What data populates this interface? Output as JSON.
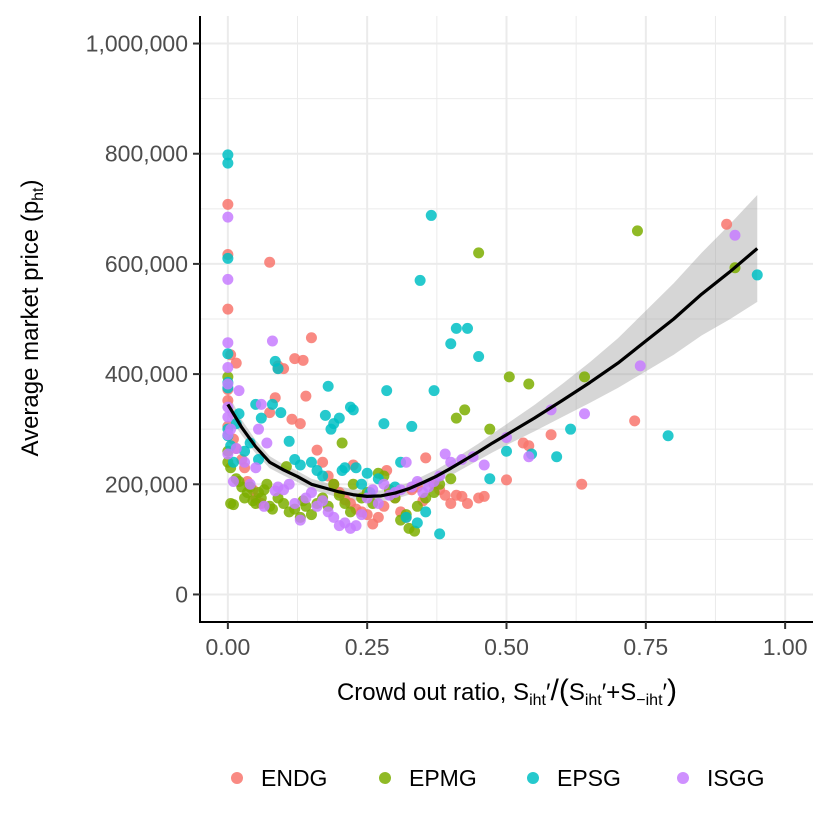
{
  "chart_data": {
    "type": "scatter",
    "title": "",
    "xlabel": "Crowd out ratio, S",
    "ylabel": "Average market price (p",
    "xlabel_math": {
      "prefix": "Crowd out ratio, ",
      "s1": "S",
      "sub1": "iht",
      "prime1": "′",
      "slash": "/",
      "open": "(",
      "s2": "S",
      "sub2": "iht",
      "prime2": "′",
      "plus": "+",
      "s3": "S",
      "sub3": "−iht",
      "prime3": "′",
      "close": ")"
    },
    "ylabel_math": {
      "main": "Average market price (p",
      "sub": "ht",
      "close": ")"
    },
    "xlim": [
      -0.05,
      1.05
    ],
    "ylim": [
      -50000,
      1050000
    ],
    "x_ticks": [
      0,
      0.25,
      0.5,
      0.75,
      1.0
    ],
    "x_tick_labels": [
      "0.00",
      "0.25",
      "0.50",
      "0.75",
      "1.00"
    ],
    "y_ticks": [
      0,
      200000,
      400000,
      600000,
      800000,
      1000000
    ],
    "y_tick_labels": [
      "0",
      "200,000",
      "400,000",
      "600,000",
      "800,000",
      "1,000,000"
    ],
    "grid": true,
    "legend_position": "bottom",
    "legend": [
      "ENDG",
      "EPMG",
      "EPSG",
      "ISGG"
    ],
    "colors": {
      "ENDG": "#F8766D",
      "EPMG": "#7CAE00",
      "EPSG": "#00BFC4",
      "ISGG": "#C77CFF"
    },
    "series": [
      {
        "name": "ENDG",
        "points": [
          [
            0.0,
            708000
          ],
          [
            0.0,
            617000
          ],
          [
            0.0,
            518000
          ],
          [
            0.005,
            435000
          ],
          [
            0.015,
            420000
          ],
          [
            0.0,
            372000
          ],
          [
            0.0,
            352000
          ],
          [
            0.0,
            305000
          ],
          [
            0.01,
            282000
          ],
          [
            0.015,
            265000
          ],
          [
            0.025,
            245000
          ],
          [
            0.03,
            230000
          ],
          [
            0.035,
            205000
          ],
          [
            0.045,
            190000
          ],
          [
            0.05,
            175000
          ],
          [
            0.06,
            165000
          ],
          [
            0.075,
            603000
          ],
          [
            0.075,
            330000
          ],
          [
            0.085,
            357000
          ],
          [
            0.09,
            410000
          ],
          [
            0.1,
            410000
          ],
          [
            0.12,
            428000
          ],
          [
            0.115,
            318000
          ],
          [
            0.13,
            310000
          ],
          [
            0.135,
            425000
          ],
          [
            0.14,
            360000
          ],
          [
            0.15,
            466000
          ],
          [
            0.16,
            262000
          ],
          [
            0.17,
            240000
          ],
          [
            0.18,
            215000
          ],
          [
            0.19,
            200000
          ],
          [
            0.2,
            185000
          ],
          [
            0.21,
            172000
          ],
          [
            0.22,
            165000
          ],
          [
            0.225,
            235000
          ],
          [
            0.23,
            155000
          ],
          [
            0.24,
            150000
          ],
          [
            0.25,
            145000
          ],
          [
            0.26,
            128000
          ],
          [
            0.27,
            140000
          ],
          [
            0.28,
            160000
          ],
          [
            0.285,
            225000
          ],
          [
            0.3,
            175000
          ],
          [
            0.31,
            150000
          ],
          [
            0.32,
            140000
          ],
          [
            0.33,
            190000
          ],
          [
            0.34,
            195000
          ],
          [
            0.35,
            170000
          ],
          [
            0.355,
            248000
          ],
          [
            0.37,
            200000
          ],
          [
            0.38,
            190000
          ],
          [
            0.39,
            180000
          ],
          [
            0.4,
            165000
          ],
          [
            0.41,
            180000
          ],
          [
            0.42,
            178000
          ],
          [
            0.43,
            165000
          ],
          [
            0.45,
            175000
          ],
          [
            0.46,
            178000
          ],
          [
            0.5,
            208000
          ],
          [
            0.53,
            275000
          ],
          [
            0.54,
            270000
          ],
          [
            0.58,
            290000
          ],
          [
            0.635,
            200000
          ],
          [
            0.73,
            315000
          ],
          [
            0.895,
            672000
          ],
          [
            0.09,
            415000
          ]
        ]
      },
      {
        "name": "EPMG",
        "points": [
          [
            0.0,
            395000
          ],
          [
            0.0,
            260000
          ],
          [
            0.0,
            240000
          ],
          [
            0.005,
            230000
          ],
          [
            0.005,
            165000
          ],
          [
            0.01,
            163000
          ],
          [
            0.015,
            210000
          ],
          [
            0.02,
            205000
          ],
          [
            0.025,
            195000
          ],
          [
            0.03,
            175000
          ],
          [
            0.035,
            185000
          ],
          [
            0.04,
            195000
          ],
          [
            0.045,
            170000
          ],
          [
            0.05,
            165000
          ],
          [
            0.055,
            185000
          ],
          [
            0.06,
            175000
          ],
          [
            0.065,
            190000
          ],
          [
            0.07,
            200000
          ],
          [
            0.075,
            160000
          ],
          [
            0.08,
            155000
          ],
          [
            0.09,
            175000
          ],
          [
            0.1,
            165000
          ],
          [
            0.105,
            232000
          ],
          [
            0.11,
            150000
          ],
          [
            0.12,
            155000
          ],
          [
            0.13,
            140000
          ],
          [
            0.135,
            170000
          ],
          [
            0.14,
            160000
          ],
          [
            0.15,
            145000
          ],
          [
            0.16,
            165000
          ],
          [
            0.17,
            175000
          ],
          [
            0.18,
            160000
          ],
          [
            0.19,
            200000
          ],
          [
            0.2,
            180000
          ],
          [
            0.205,
            275000
          ],
          [
            0.21,
            165000
          ],
          [
            0.22,
            150000
          ],
          [
            0.225,
            200000
          ],
          [
            0.24,
            175000
          ],
          [
            0.25,
            185000
          ],
          [
            0.26,
            165000
          ],
          [
            0.27,
            220000
          ],
          [
            0.28,
            215000
          ],
          [
            0.29,
            190000
          ],
          [
            0.3,
            175000
          ],
          [
            0.31,
            135000
          ],
          [
            0.32,
            145000
          ],
          [
            0.325,
            120000
          ],
          [
            0.335,
            115000
          ],
          [
            0.34,
            160000
          ],
          [
            0.355,
            175000
          ],
          [
            0.37,
            185000
          ],
          [
            0.38,
            200000
          ],
          [
            0.4,
            210000
          ],
          [
            0.41,
            320000
          ],
          [
            0.425,
            335000
          ],
          [
            0.45,
            620000
          ],
          [
            0.47,
            300000
          ],
          [
            0.505,
            395000
          ],
          [
            0.54,
            382000
          ],
          [
            0.64,
            395000
          ],
          [
            0.735,
            660000
          ],
          [
            0.91,
            593000
          ]
        ]
      },
      {
        "name": "EPSG",
        "points": [
          [
            0.0,
            798000
          ],
          [
            0.0,
            783000
          ],
          [
            0.0,
            610000
          ],
          [
            0.0,
            437000
          ],
          [
            0.0,
            385000
          ],
          [
            0.0,
            375000
          ],
          [
            0.0,
            300000
          ],
          [
            0.0,
            288000
          ],
          [
            0.005,
            270000
          ],
          [
            0.01,
            240000
          ],
          [
            0.015,
            310000
          ],
          [
            0.02,
            328000
          ],
          [
            0.03,
            260000
          ],
          [
            0.04,
            275000
          ],
          [
            0.05,
            345000
          ],
          [
            0.055,
            245000
          ],
          [
            0.06,
            320000
          ],
          [
            0.08,
            345000
          ],
          [
            0.085,
            423000
          ],
          [
            0.09,
            410000
          ],
          [
            0.095,
            330000
          ],
          [
            0.11,
            278000
          ],
          [
            0.12,
            245000
          ],
          [
            0.13,
            235000
          ],
          [
            0.15,
            240000
          ],
          [
            0.16,
            225000
          ],
          [
            0.17,
            215000
          ],
          [
            0.175,
            325000
          ],
          [
            0.18,
            378000
          ],
          [
            0.185,
            300000
          ],
          [
            0.19,
            310000
          ],
          [
            0.2,
            320000
          ],
          [
            0.205,
            225000
          ],
          [
            0.21,
            230000
          ],
          [
            0.22,
            340000
          ],
          [
            0.225,
            335000
          ],
          [
            0.23,
            230000
          ],
          [
            0.24,
            200000
          ],
          [
            0.25,
            220000
          ],
          [
            0.255,
            185000
          ],
          [
            0.27,
            210000
          ],
          [
            0.28,
            310000
          ],
          [
            0.285,
            370000
          ],
          [
            0.3,
            195000
          ],
          [
            0.31,
            240000
          ],
          [
            0.32,
            140000
          ],
          [
            0.33,
            305000
          ],
          [
            0.34,
            130000
          ],
          [
            0.345,
            570000
          ],
          [
            0.355,
            150000
          ],
          [
            0.365,
            688000
          ],
          [
            0.37,
            370000
          ],
          [
            0.38,
            110000
          ],
          [
            0.4,
            455000
          ],
          [
            0.41,
            483000
          ],
          [
            0.43,
            483000
          ],
          [
            0.45,
            432000
          ],
          [
            0.47,
            210000
          ],
          [
            0.5,
            260000
          ],
          [
            0.545,
            255000
          ],
          [
            0.59,
            250000
          ],
          [
            0.615,
            300000
          ],
          [
            0.79,
            288000
          ],
          [
            0.95,
            580000
          ]
        ]
      },
      {
        "name": "ISGG",
        "points": [
          [
            0.0,
            685000
          ],
          [
            0.0,
            572000
          ],
          [
            0.0,
            457000
          ],
          [
            0.0,
            412000
          ],
          [
            0.0,
            382000
          ],
          [
            0.0,
            340000
          ],
          [
            0.0,
            322000
          ],
          [
            0.0,
            290000
          ],
          [
            0.0,
            255000
          ],
          [
            0.005,
            300000
          ],
          [
            0.01,
            205000
          ],
          [
            0.015,
            265000
          ],
          [
            0.02,
            370000
          ],
          [
            0.03,
            240000
          ],
          [
            0.04,
            200000
          ],
          [
            0.05,
            230000
          ],
          [
            0.055,
            300000
          ],
          [
            0.06,
            345000
          ],
          [
            0.065,
            160000
          ],
          [
            0.07,
            275000
          ],
          [
            0.08,
            460000
          ],
          [
            0.085,
            188000
          ],
          [
            0.09,
            195000
          ],
          [
            0.1,
            190000
          ],
          [
            0.11,
            200000
          ],
          [
            0.12,
            165000
          ],
          [
            0.13,
            135000
          ],
          [
            0.14,
            175000
          ],
          [
            0.15,
            185000
          ],
          [
            0.16,
            160000
          ],
          [
            0.17,
            170000
          ],
          [
            0.18,
            150000
          ],
          [
            0.19,
            140000
          ],
          [
            0.2,
            125000
          ],
          [
            0.21,
            130000
          ],
          [
            0.22,
            120000
          ],
          [
            0.23,
            125000
          ],
          [
            0.24,
            145000
          ],
          [
            0.25,
            175000
          ],
          [
            0.26,
            190000
          ],
          [
            0.27,
            165000
          ],
          [
            0.28,
            200000
          ],
          [
            0.29,
            180000
          ],
          [
            0.3,
            185000
          ],
          [
            0.31,
            190000
          ],
          [
            0.32,
            240000
          ],
          [
            0.33,
            195000
          ],
          [
            0.34,
            205000
          ],
          [
            0.35,
            185000
          ],
          [
            0.36,
            195000
          ],
          [
            0.37,
            205000
          ],
          [
            0.38,
            215000
          ],
          [
            0.39,
            255000
          ],
          [
            0.4,
            240000
          ],
          [
            0.42,
            245000
          ],
          [
            0.44,
            250000
          ],
          [
            0.46,
            235000
          ],
          [
            0.5,
            285000
          ],
          [
            0.54,
            250000
          ],
          [
            0.58,
            335000
          ],
          [
            0.64,
            328000
          ],
          [
            0.74,
            415000
          ],
          [
            0.91,
            652000
          ]
        ]
      }
    ],
    "smooth": {
      "name": "loess",
      "color": "#000000",
      "band_color": "#999999",
      "points": [
        [
          0.0,
          345000,
          20000
        ],
        [
          0.025,
          303000,
          14000
        ],
        [
          0.05,
          268000,
          12000
        ],
        [
          0.075,
          240000,
          11000
        ],
        [
          0.1,
          226000,
          10000
        ],
        [
          0.125,
          214000,
          10000
        ],
        [
          0.15,
          200000,
          10000
        ],
        [
          0.175,
          193000,
          10000
        ],
        [
          0.2,
          186000,
          10000
        ],
        [
          0.225,
          181000,
          10000
        ],
        [
          0.25,
          178000,
          10000
        ],
        [
          0.275,
          179000,
          10000
        ],
        [
          0.3,
          184000,
          11000
        ],
        [
          0.325,
          192000,
          11000
        ],
        [
          0.35,
          203000,
          12000
        ],
        [
          0.375,
          215000,
          12000
        ],
        [
          0.4,
          229000,
          13000
        ],
        [
          0.425,
          244000,
          14000
        ],
        [
          0.45,
          259000,
          15000
        ],
        [
          0.475,
          275000,
          17000
        ],
        [
          0.5,
          290000,
          19000
        ],
        [
          0.55,
          320000,
          24000
        ],
        [
          0.6,
          352000,
          30000
        ],
        [
          0.65,
          385000,
          37000
        ],
        [
          0.7,
          420000,
          45000
        ],
        [
          0.75,
          460000,
          55000
        ],
        [
          0.8,
          500000,
          65000
        ],
        [
          0.85,
          545000,
          75000
        ],
        [
          0.9,
          585000,
          86000
        ],
        [
          0.95,
          628000,
          97000
        ]
      ]
    }
  }
}
